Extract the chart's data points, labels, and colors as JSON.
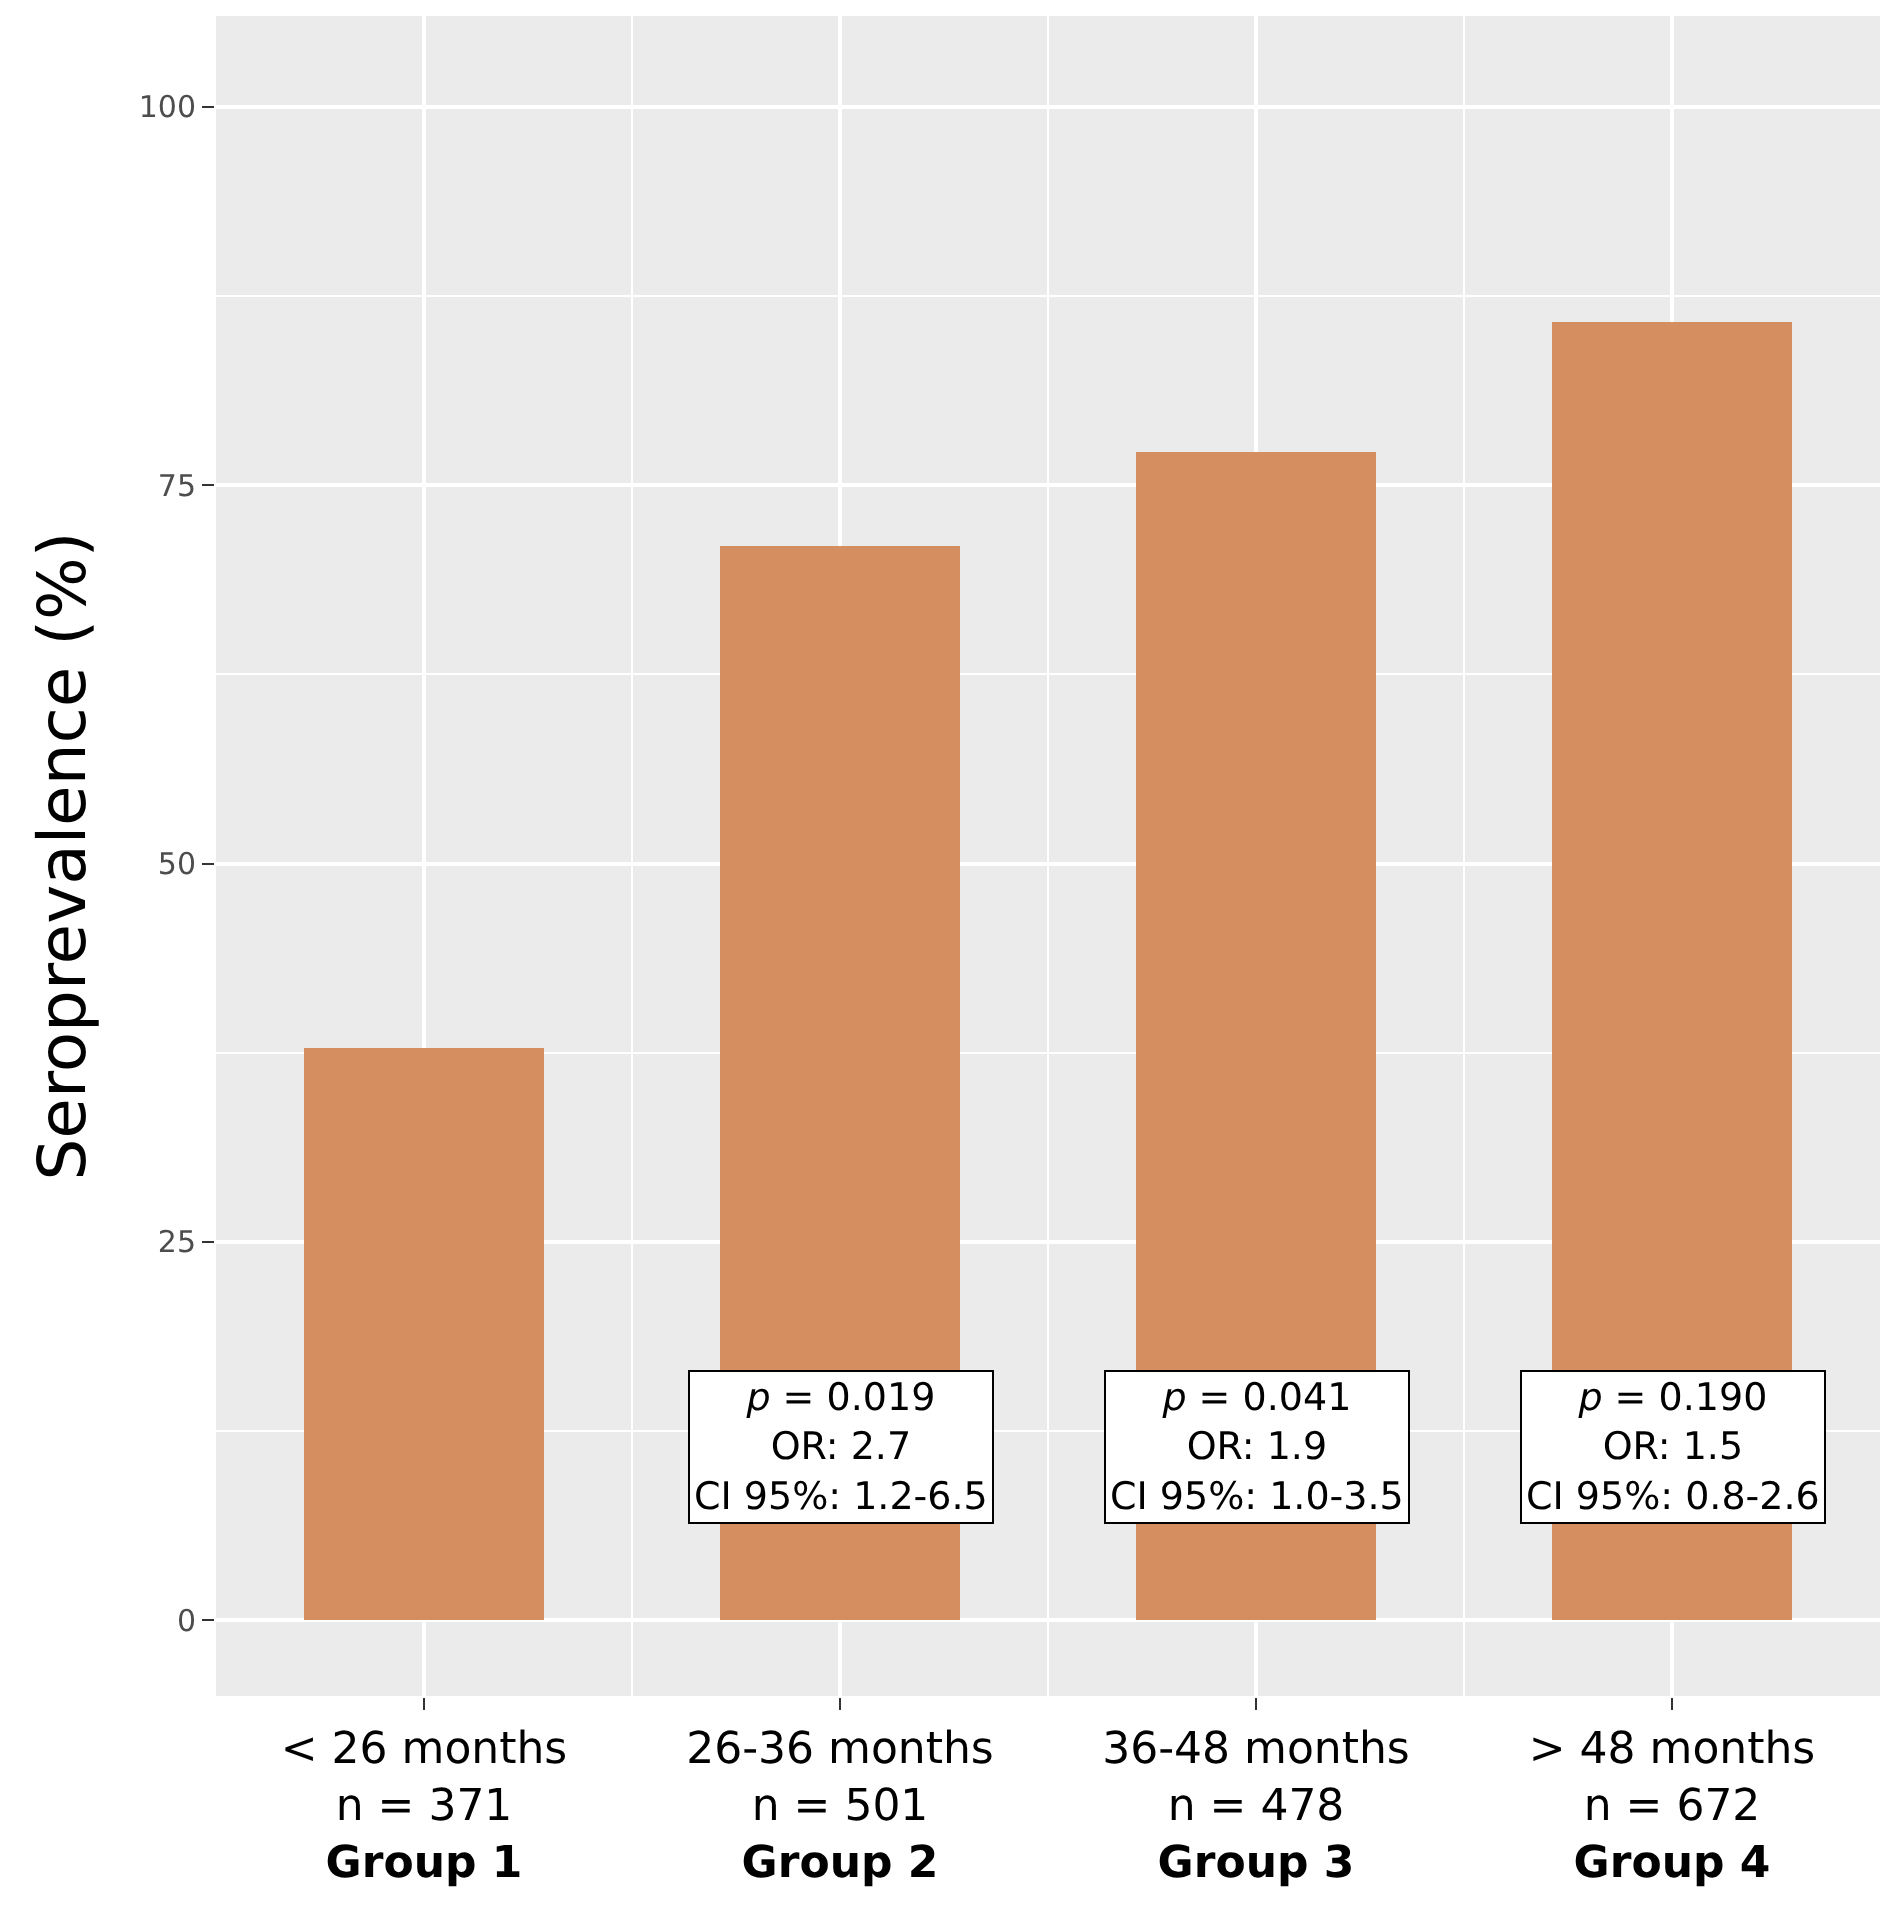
{
  "chart_data": {
    "type": "bar",
    "ylabel": "Seroprevalence (%)",
    "categories": [
      "< 26 months\nn = 371\nGroup 1",
      "26-36 months\nn = 501\nGroup 2",
      "36-48 months\nn = 478\nGroup 3",
      "> 48 months\nn = 672\nGroup 4"
    ],
    "values": [
      37.8,
      71.0,
      77.2,
      85.8
    ],
    "color": "#d48e60",
    "ylim": [
      -5,
      106
    ],
    "yticks": [
      0,
      25,
      50,
      75,
      100
    ],
    "grid": true,
    "annotations": [
      "p = 0.019\nOR: 2.7\nCI 95%: 1.2-6.5",
      "p = 0.041\nOR: 1.9\nCI 95%: 1.0-3.5",
      "p = 0.190\nOR: 1.5\nCI 95%: 0.8-2.6"
    ]
  }
}
